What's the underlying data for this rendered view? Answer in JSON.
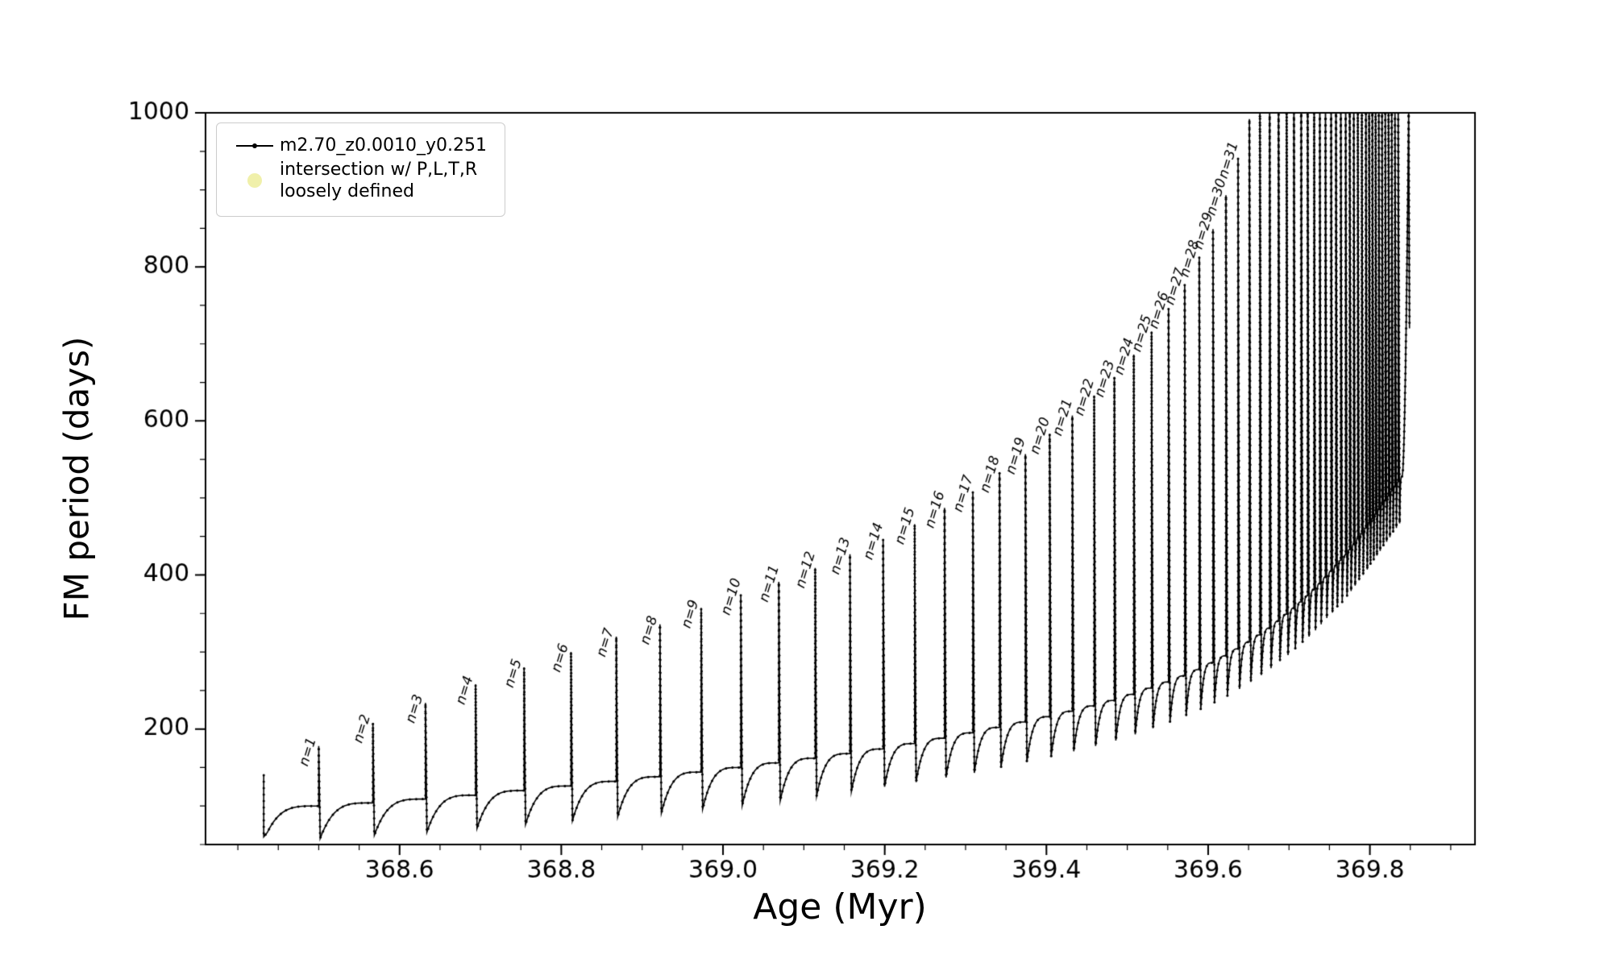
{
  "figure": {
    "background": "#ffffff",
    "line_color": "#000000",
    "tick_color": "#000000"
  },
  "legend": {
    "series_label": "m2.70_z0.0010_y0.251",
    "intersection_label_line1": "intersection w/ P,L,T,R",
    "intersection_label_line2": "loosely defined",
    "intersection_marker_color": "#f0f0aa",
    "series_marker_color": "#000000"
  },
  "chart_data": {
    "type": "line",
    "title": "",
    "xlabel": "Age (Myr)",
    "ylabel": "FM period (days)",
    "series_name": "m2.70_z0.0010_y0.251",
    "xlim": [
      368.36,
      369.93
    ],
    "ylim": [
      50,
      1000
    ],
    "x_ticks": [
      {
        "v": 368.6,
        "label": "368.6"
      },
      {
        "v": 368.8,
        "label": "368.8"
      },
      {
        "v": 369.0,
        "label": "369.0"
      },
      {
        "v": 369.2,
        "label": "369.2"
      },
      {
        "v": 369.4,
        "label": "369.4"
      },
      {
        "v": 369.6,
        "label": "369.6"
      },
      {
        "v": 369.8,
        "label": "369.8"
      }
    ],
    "y_ticks": [
      {
        "v": 200,
        "label": "200"
      },
      {
        "v": 400,
        "label": "400"
      },
      {
        "v": 600,
        "label": "600"
      },
      {
        "v": 800,
        "label": "800"
      },
      {
        "v": 1000,
        "label": "1000"
      }
    ],
    "x_minor_step": 0.05,
    "y_minor_step": 50,
    "start": {
      "age": 368.432,
      "top": 140,
      "bottom": 60
    },
    "pulses": [
      {
        "n": 1,
        "label": "n=1",
        "age": 368.5,
        "peak": 178,
        "base": 100,
        "min": 58
      },
      {
        "n": 2,
        "label": "n=2",
        "age": 368.567,
        "peak": 208,
        "base": 104,
        "min": 62
      },
      {
        "n": 3,
        "label": "n=3",
        "age": 368.632,
        "peak": 234,
        "base": 109,
        "min": 66
      },
      {
        "n": 4,
        "label": "n=4",
        "age": 368.694,
        "peak": 258,
        "base": 114,
        "min": 71
      },
      {
        "n": 5,
        "label": "n=5",
        "age": 368.754,
        "peak": 280,
        "base": 120,
        "min": 76
      },
      {
        "n": 6,
        "label": "n=6",
        "age": 368.812,
        "peak": 300,
        "base": 126,
        "min": 81
      },
      {
        "n": 7,
        "label": "n=7",
        "age": 368.868,
        "peak": 320,
        "base": 132,
        "min": 86
      },
      {
        "n": 8,
        "label": "n=8",
        "age": 368.922,
        "peak": 336,
        "base": 138,
        "min": 91
      },
      {
        "n": 9,
        "label": "n=9",
        "age": 368.973,
        "peak": 357,
        "base": 144,
        "min": 96
      },
      {
        "n": 10,
        "label": "n=10",
        "age": 369.022,
        "peak": 374,
        "base": 150,
        "min": 101
      },
      {
        "n": 11,
        "label": "n=11",
        "age": 369.069,
        "peak": 391,
        "base": 156,
        "min": 107
      },
      {
        "n": 12,
        "label": "n=12",
        "age": 369.114,
        "peak": 409,
        "base": 162,
        "min": 113
      },
      {
        "n": 13,
        "label": "n=13",
        "age": 369.157,
        "peak": 427,
        "base": 168,
        "min": 119
      },
      {
        "n": 14,
        "label": "n=14",
        "age": 369.198,
        "peak": 446,
        "base": 174,
        "min": 125
      },
      {
        "n": 15,
        "label": "n=15",
        "age": 369.237,
        "peak": 466,
        "base": 181,
        "min": 131
      },
      {
        "n": 16,
        "label": "n=16",
        "age": 369.274,
        "peak": 487,
        "base": 188,
        "min": 137
      },
      {
        "n": 17,
        "label": "n=17",
        "age": 369.309,
        "peak": 508,
        "base": 195,
        "min": 143
      },
      {
        "n": 18,
        "label": "n=18",
        "age": 369.342,
        "peak": 533,
        "base": 202,
        "min": 150
      },
      {
        "n": 19,
        "label": "n=19",
        "age": 369.374,
        "peak": 557,
        "base": 209,
        "min": 157
      },
      {
        "n": 20,
        "label": "n=20",
        "age": 369.404,
        "peak": 583,
        "base": 216,
        "min": 164
      },
      {
        "n": 21,
        "label": "n=21",
        "age": 369.432,
        "peak": 607,
        "base": 223,
        "min": 171
      },
      {
        "n": 22,
        "label": "n=22",
        "age": 369.459,
        "peak": 633,
        "base": 230,
        "min": 178
      },
      {
        "n": 23,
        "label": "n=23",
        "age": 369.484,
        "peak": 657,
        "base": 237,
        "min": 185
      },
      {
        "n": 24,
        "label": "n=24",
        "age": 369.508,
        "peak": 686,
        "base": 245,
        "min": 193
      },
      {
        "n": 25,
        "label": "n=25",
        "age": 369.53,
        "peak": 716,
        "base": 253,
        "min": 201
      },
      {
        "n": 26,
        "label": "n=26",
        "age": 369.551,
        "peak": 746,
        "base": 261,
        "min": 209
      },
      {
        "n": 27,
        "label": "n=27",
        "age": 369.571,
        "peak": 777,
        "base": 269,
        "min": 217
      },
      {
        "n": 28,
        "label": "n=28",
        "age": 369.589,
        "peak": 813,
        "base": 277,
        "min": 225
      },
      {
        "n": 29,
        "label": "n=29",
        "age": 369.606,
        "peak": 849,
        "base": 286,
        "min": 234
      },
      {
        "n": 30,
        "label": "n=30",
        "age": 369.622,
        "peak": 893,
        "base": 295,
        "min": 243
      },
      {
        "n": 31,
        "label": "n=31",
        "age": 369.637,
        "peak": 941,
        "base": 304,
        "min": 252
      },
      {
        "n": null,
        "label": "",
        "age": 369.651,
        "peak": 992,
        "base": 313,
        "min": 261
      },
      {
        "n": null,
        "label": "",
        "age": 369.664,
        "peak": 1040,
        "base": 322,
        "min": 270
      },
      {
        "n": null,
        "label": "",
        "age": 369.676,
        "peak": 1060,
        "base": 331,
        "min": 279
      },
      {
        "n": null,
        "label": "",
        "age": 369.687,
        "peak": 1070,
        "base": 340,
        "min": 288
      },
      {
        "n": null,
        "label": "",
        "age": 369.697,
        "peak": 1080,
        "base": 349,
        "min": 296
      },
      {
        "n": null,
        "label": "",
        "age": 369.706,
        "peak": 1080,
        "base": 357,
        "min": 304
      },
      {
        "n": null,
        "label": "",
        "age": 369.715,
        "peak": 1080,
        "base": 365,
        "min": 312
      },
      {
        "n": null,
        "label": "",
        "age": 369.723,
        "peak": 1080,
        "base": 373,
        "min": 320
      },
      {
        "n": null,
        "label": "",
        "age": 369.731,
        "peak": 1080,
        "base": 381,
        "min": 328
      },
      {
        "n": null,
        "label": "",
        "age": 369.738,
        "peak": 1080,
        "base": 389,
        "min": 336
      },
      {
        "n": null,
        "label": "",
        "age": 369.745,
        "peak": 1080,
        "base": 397,
        "min": 344
      },
      {
        "n": null,
        "label": "",
        "age": 369.752,
        "peak": 1080,
        "base": 405,
        "min": 351
      },
      {
        "n": null,
        "label": "",
        "age": 369.758,
        "peak": 1080,
        "base": 412,
        "min": 358
      },
      {
        "n": null,
        "label": "",
        "age": 369.764,
        "peak": 1080,
        "base": 419,
        "min": 365
      },
      {
        "n": null,
        "label": "",
        "age": 369.77,
        "peak": 1080,
        "base": 426,
        "min": 372
      },
      {
        "n": null,
        "label": "",
        "age": 369.775,
        "peak": 1080,
        "base": 433,
        "min": 379
      },
      {
        "n": null,
        "label": "",
        "age": 369.78,
        "peak": 1080,
        "base": 440,
        "min": 386
      },
      {
        "n": null,
        "label": "",
        "age": 369.785,
        "peak": 1075,
        "base": 447,
        "min": 393
      },
      {
        "n": null,
        "label": "",
        "age": 369.79,
        "peak": 1070,
        "base": 454,
        "min": 400
      },
      {
        "n": null,
        "label": "",
        "age": 369.795,
        "peak": 1070,
        "base": 461,
        "min": 407
      },
      {
        "n": null,
        "label": "",
        "age": 369.799,
        "peak": 1065,
        "base": 467,
        "min": 413
      },
      {
        "n": null,
        "label": "",
        "age": 369.803,
        "peak": 1060,
        "base": 473,
        "min": 419
      },
      {
        "n": null,
        "label": "",
        "age": 369.807,
        "peak": 1060,
        "base": 479,
        "min": 425
      },
      {
        "n": null,
        "label": "",
        "age": 369.811,
        "peak": 1055,
        "base": 485,
        "min": 431
      },
      {
        "n": null,
        "label": "",
        "age": 369.815,
        "peak": 1050,
        "base": 491,
        "min": 437
      },
      {
        "n": null,
        "label": "",
        "age": 369.819,
        "peak": 1045,
        "base": 497,
        "min": 443
      },
      {
        "n": null,
        "label": "",
        "age": 369.823,
        "peak": 1040,
        "base": 503,
        "min": 449
      },
      {
        "n": null,
        "label": "",
        "age": 369.827,
        "peak": 1035,
        "base": 509,
        "min": 455
      },
      {
        "n": null,
        "label": "",
        "age": 369.831,
        "peak": 1030,
        "base": 515,
        "min": 461
      },
      {
        "n": null,
        "label": "",
        "age": 369.835,
        "peak": 1025,
        "base": 521,
        "min": 467
      }
    ],
    "final_rise": {
      "age": 369.84,
      "start_value": 528,
      "peak": 1000,
      "end_age": 369.849,
      "end_value": 720
    }
  }
}
